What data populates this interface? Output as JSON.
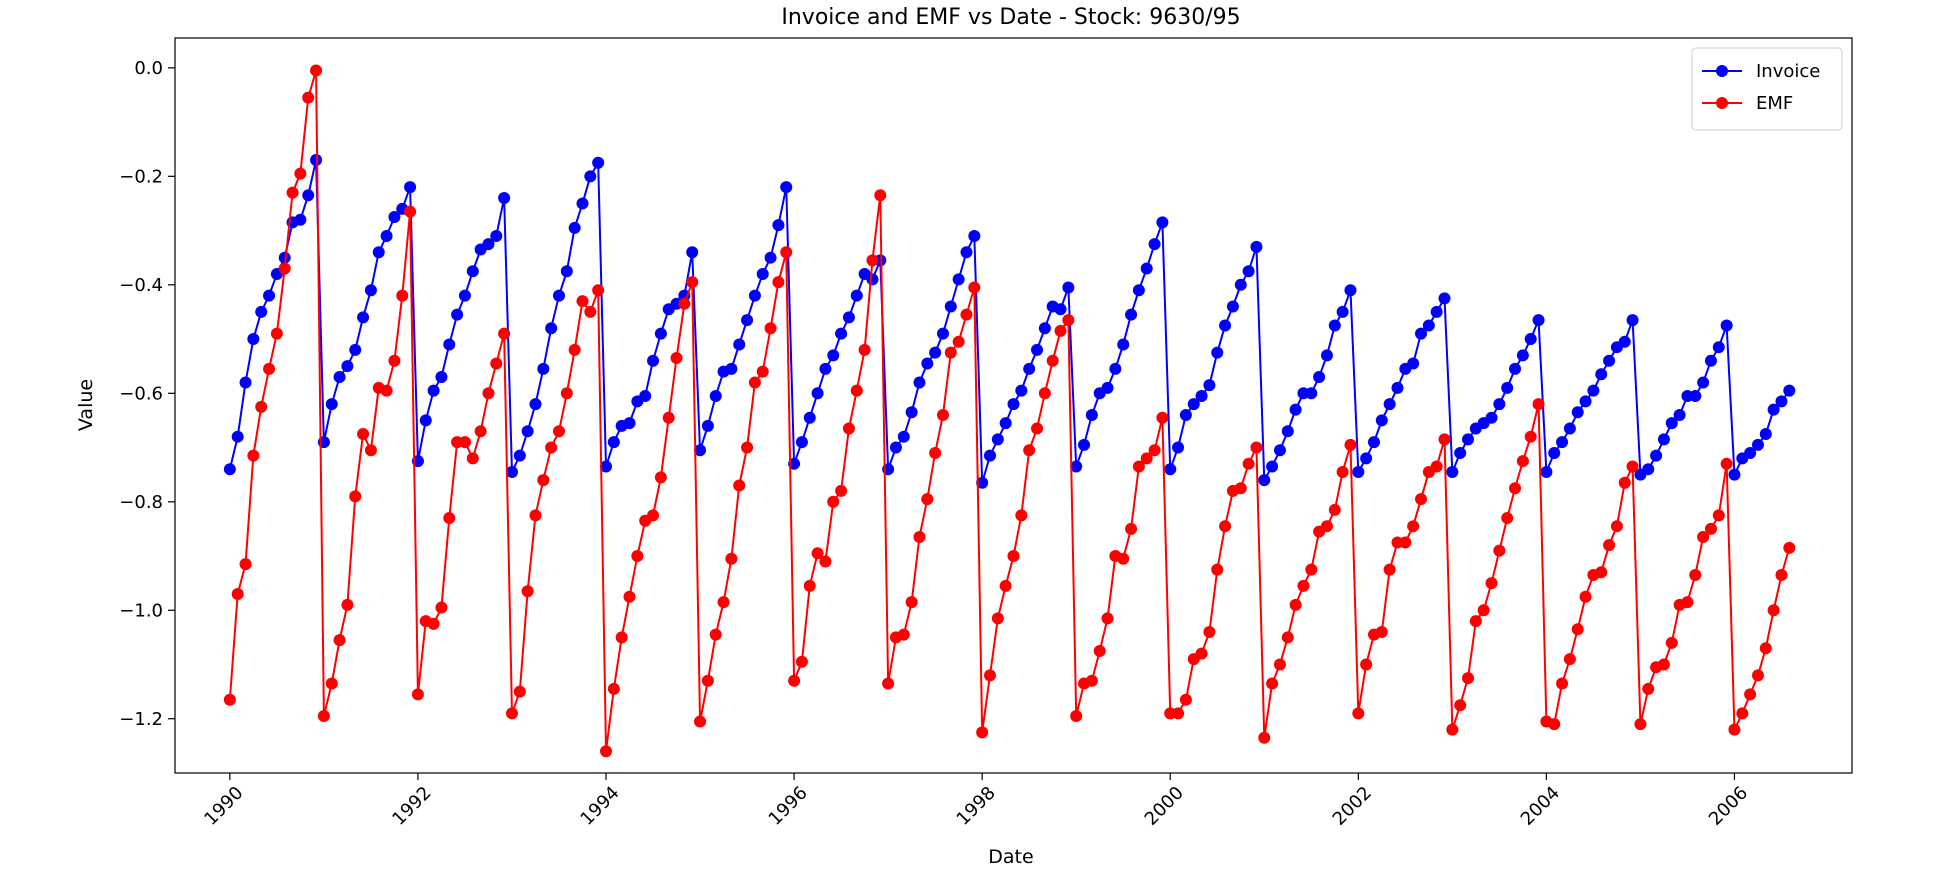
{
  "chart_data": {
    "type": "line",
    "title": "Invoice and EMF vs Date - Stock: 9630/95",
    "xlabel": "Date",
    "ylabel": "Value",
    "x_ticks": [
      "1990",
      "1992",
      "1994",
      "1996",
      "1998",
      "2000",
      "2002",
      "2004",
      "2006"
    ],
    "y_ticks": [
      "0.0",
      "−0.2",
      "−0.4",
      "−0.6",
      "−0.8",
      "−1.0",
      "−1.2"
    ],
    "xlim": [
      "1989-06",
      "2007-04"
    ],
    "ylim": [
      -1.3,
      0.055
    ],
    "grid": false,
    "legend_position": "upper right",
    "x_start": "1990-01",
    "x_step": "monthly",
    "series": [
      {
        "name": "Invoice",
        "color": "#0000ff",
        "marker": "circle",
        "values": [
          -0.74,
          -0.68,
          -0.58,
          -0.5,
          -0.45,
          -0.42,
          -0.38,
          -0.35,
          -0.285,
          -0.28,
          -0.235,
          -0.17,
          -0.69,
          -0.62,
          -0.57,
          -0.55,
          -0.52,
          -0.46,
          -0.41,
          -0.34,
          -0.31,
          -0.275,
          -0.26,
          -0.22,
          -0.725,
          -0.65,
          -0.595,
          -0.57,
          -0.51,
          -0.455,
          -0.42,
          -0.375,
          -0.335,
          -0.325,
          -0.31,
          -0.24,
          -0.745,
          -0.715,
          -0.67,
          -0.62,
          -0.555,
          -0.48,
          -0.42,
          -0.375,
          -0.295,
          -0.25,
          -0.2,
          -0.175,
          -0.735,
          -0.69,
          -0.66,
          -0.655,
          -0.615,
          -0.605,
          -0.54,
          -0.49,
          -0.445,
          -0.435,
          -0.42,
          -0.34,
          -0.705,
          -0.66,
          -0.605,
          -0.56,
          -0.555,
          -0.51,
          -0.465,
          -0.42,
          -0.38,
          -0.35,
          -0.29,
          -0.22,
          -0.73,
          -0.69,
          -0.645,
          -0.6,
          -0.555,
          -0.53,
          -0.49,
          -0.46,
          -0.42,
          -0.38,
          -0.39,
          -0.355,
          -0.74,
          -0.7,
          -0.68,
          -0.635,
          -0.58,
          -0.545,
          -0.525,
          -0.49,
          -0.44,
          -0.39,
          -0.34,
          -0.31,
          -0.765,
          -0.715,
          -0.685,
          -0.655,
          -0.62,
          -0.595,
          -0.555,
          -0.52,
          -0.48,
          -0.44,
          -0.445,
          -0.405,
          -0.735,
          -0.695,
          -0.64,
          -0.6,
          -0.59,
          -0.555,
          -0.51,
          -0.455,
          -0.41,
          -0.37,
          -0.325,
          -0.285,
          -0.74,
          -0.7,
          -0.64,
          -0.62,
          -0.605,
          -0.585,
          -0.525,
          -0.475,
          -0.44,
          -0.4,
          -0.375,
          -0.33,
          -0.76,
          -0.735,
          -0.705,
          -0.67,
          -0.63,
          -0.6,
          -0.6,
          -0.57,
          -0.53,
          -0.475,
          -0.45,
          -0.41,
          -0.745,
          -0.72,
          -0.69,
          -0.65,
          -0.62,
          -0.59,
          -0.555,
          -0.545,
          -0.49,
          -0.475,
          -0.45,
          -0.425,
          -0.745,
          -0.71,
          -0.685,
          -0.665,
          -0.655,
          -0.645,
          -0.62,
          -0.59,
          -0.555,
          -0.53,
          -0.5,
          -0.465,
          -0.745,
          -0.71,
          -0.69,
          -0.665,
          -0.635,
          -0.615,
          -0.595,
          -0.565,
          -0.54,
          -0.515,
          -0.505,
          -0.465,
          -0.75,
          -0.74,
          -0.715,
          -0.685,
          -0.655,
          -0.64,
          -0.605,
          -0.605,
          -0.58,
          -0.54,
          -0.515,
          -0.475,
          -0.75,
          -0.72,
          -0.71,
          -0.695,
          -0.675,
          -0.63,
          -0.615,
          -0.595
        ]
      },
      {
        "name": "EMF",
        "color": "#ff0000",
        "marker": "circle",
        "values": [
          -1.165,
          -0.97,
          -0.915,
          -0.715,
          -0.625,
          -0.555,
          -0.49,
          -0.37,
          -0.23,
          -0.195,
          -0.055,
          -0.005,
          -1.195,
          -1.135,
          -1.055,
          -0.99,
          -0.79,
          -0.675,
          -0.705,
          -0.59,
          -0.595,
          -0.54,
          -0.42,
          -0.265,
          -1.155,
          -1.02,
          -1.025,
          -0.995,
          -0.83,
          -0.69,
          -0.69,
          -0.72,
          -0.67,
          -0.6,
          -0.545,
          -0.49,
          -1.19,
          -1.15,
          -0.965,
          -0.825,
          -0.76,
          -0.7,
          -0.67,
          -0.6,
          -0.52,
          -0.43,
          -0.45,
          -0.41,
          -1.26,
          -1.145,
          -1.05,
          -0.975,
          -0.9,
          -0.835,
          -0.825,
          -0.755,
          -0.645,
          -0.535,
          -0.435,
          -0.395,
          -1.205,
          -1.13,
          -1.045,
          -0.985,
          -0.905,
          -0.77,
          -0.7,
          -0.58,
          -0.56,
          -0.48,
          -0.395,
          -0.34,
          -1.13,
          -1.095,
          -0.955,
          -0.895,
          -0.91,
          -0.8,
          -0.78,
          -0.665,
          -0.595,
          -0.52,
          -0.355,
          -0.235,
          -1.135,
          -1.05,
          -1.045,
          -0.985,
          -0.865,
          -0.795,
          -0.71,
          -0.64,
          -0.525,
          -0.505,
          -0.455,
          -0.405,
          -1.225,
          -1.12,
          -1.015,
          -0.955,
          -0.9,
          -0.825,
          -0.705,
          -0.665,
          -0.6,
          -0.54,
          -0.485,
          -0.465,
          -1.195,
          -1.135,
          -1.13,
          -1.075,
          -1.015,
          -0.9,
          -0.905,
          -0.85,
          -0.735,
          -0.72,
          -0.705,
          -0.645,
          -1.19,
          -1.19,
          -1.165,
          -1.09,
          -1.08,
          -1.04,
          -0.925,
          -0.845,
          -0.78,
          -0.775,
          -0.73,
          -0.7,
          -1.235,
          -1.135,
          -1.1,
          -1.05,
          -0.99,
          -0.955,
          -0.925,
          -0.855,
          -0.845,
          -0.815,
          -0.745,
          -0.695,
          -1.19,
          -1.1,
          -1.045,
          -1.04,
          -0.925,
          -0.875,
          -0.875,
          -0.845,
          -0.795,
          -0.745,
          -0.735,
          -0.685,
          -1.22,
          -1.175,
          -1.125,
          -1.02,
          -1.0,
          -0.95,
          -0.89,
          -0.83,
          -0.775,
          -0.725,
          -0.68,
          -0.62,
          -1.205,
          -1.21,
          -1.135,
          -1.09,
          -1.035,
          -0.975,
          -0.935,
          -0.93,
          -0.88,
          -0.845,
          -0.765,
          -0.735,
          -1.21,
          -1.145,
          -1.105,
          -1.1,
          -1.06,
          -0.99,
          -0.985,
          -0.935,
          -0.865,
          -0.85,
          -0.825,
          -0.73,
          -1.22,
          -1.19,
          -1.155,
          -1.12,
          -1.07,
          -1.0,
          -0.935,
          -0.885
        ]
      }
    ]
  }
}
